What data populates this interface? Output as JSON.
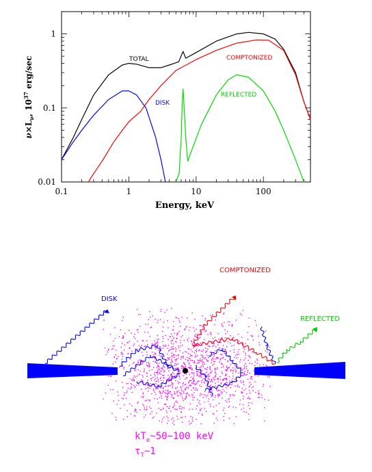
{
  "chart_data": {
    "type": "line",
    "xlabel": "Energy, keV",
    "ylabel": "ν×L_ν, 10^37 erg/sec",
    "xscale": "log",
    "yscale": "log",
    "xlim": [
      0.1,
      500
    ],
    "ylim": [
      0.01,
      2
    ],
    "xticks": [
      "0.1",
      "1",
      "10",
      "100"
    ],
    "yticks": [
      "0.01",
      "0.1",
      "1"
    ],
    "series": [
      {
        "name": "TOTAL",
        "color": "#000000",
        "points": [
          [
            0.1,
            0.02
          ],
          [
            0.15,
            0.04
          ],
          [
            0.2,
            0.07
          ],
          [
            0.3,
            0.15
          ],
          [
            0.5,
            0.28
          ],
          [
            0.8,
            0.38
          ],
          [
            1.0,
            0.4
          ],
          [
            1.3,
            0.39
          ],
          [
            2.0,
            0.35
          ],
          [
            3.0,
            0.35
          ],
          [
            4.0,
            0.38
          ],
          [
            5.5,
            0.42
          ],
          [
            6.4,
            0.58
          ],
          [
            7.0,
            0.47
          ],
          [
            10,
            0.56
          ],
          [
            20,
            0.8
          ],
          [
            40,
            1.0
          ],
          [
            60,
            1.05
          ],
          [
            100,
            1.0
          ],
          [
            150,
            0.85
          ],
          [
            200,
            0.62
          ],
          [
            300,
            0.3
          ],
          [
            400,
            0.12
          ],
          [
            500,
            0.07
          ]
        ]
      },
      {
        "name": "COMPTONIZED",
        "color": "#ff0000",
        "points": [
          [
            0.25,
            0.01
          ],
          [
            0.3,
            0.013
          ],
          [
            0.4,
            0.019
          ],
          [
            0.6,
            0.035
          ],
          [
            0.8,
            0.05
          ],
          [
            1.0,
            0.065
          ],
          [
            1.5,
            0.09
          ],
          [
            2.0,
            0.13
          ],
          [
            3.0,
            0.2
          ],
          [
            5.0,
            0.32
          ],
          [
            10,
            0.45
          ],
          [
            20,
            0.6
          ],
          [
            40,
            0.75
          ],
          [
            80,
            0.83
          ],
          [
            120,
            0.82
          ],
          [
            200,
            0.6
          ],
          [
            300,
            0.28
          ],
          [
            400,
            0.12
          ],
          [
            500,
            0.07
          ]
        ]
      },
      {
        "name": "DISK",
        "color": "#0000ff",
        "points": [
          [
            0.1,
            0.02
          ],
          [
            0.15,
            0.035
          ],
          [
            0.2,
            0.05
          ],
          [
            0.3,
            0.08
          ],
          [
            0.5,
            0.13
          ],
          [
            0.8,
            0.17
          ],
          [
            1.0,
            0.17
          ],
          [
            1.3,
            0.15
          ],
          [
            1.8,
            0.1
          ],
          [
            2.5,
            0.04
          ],
          [
            3.0,
            0.02
          ],
          [
            3.5,
            0.01
          ]
        ]
      },
      {
        "name": "REFLECTED",
        "color": "#00dd00",
        "points": [
          [
            5.0,
            0.01
          ],
          [
            5.6,
            0.013
          ],
          [
            6.0,
            0.04
          ],
          [
            6.2,
            0.11
          ],
          [
            6.4,
            0.18
          ],
          [
            6.6,
            0.11
          ],
          [
            7.0,
            0.04
          ],
          [
            7.5,
            0.019
          ],
          [
            9,
            0.03
          ],
          [
            12,
            0.06
          ],
          [
            20,
            0.15
          ],
          [
            30,
            0.24
          ],
          [
            40,
            0.28
          ],
          [
            60,
            0.26
          ],
          [
            100,
            0.17
          ],
          [
            150,
            0.09
          ],
          [
            200,
            0.05
          ],
          [
            300,
            0.02
          ],
          [
            400,
            0.01
          ]
        ]
      }
    ],
    "annotations": [
      "TOTAL",
      "COMPTONIZED",
      "DISK",
      "REFLECTED"
    ]
  },
  "diagram": {
    "labels": {
      "disk": "DISK",
      "comptonized": "COMPTONIZED",
      "reflected": "REFLECTED",
      "temperature": "kT_e~50−100 keV",
      "optical_depth": "τ_T~1"
    },
    "colors": {
      "disk": "#0000ff",
      "comptonized": "#ff0000",
      "reflected": "#00cc00",
      "corona": "#ff00ff",
      "disk_body": "#0000ff"
    }
  }
}
